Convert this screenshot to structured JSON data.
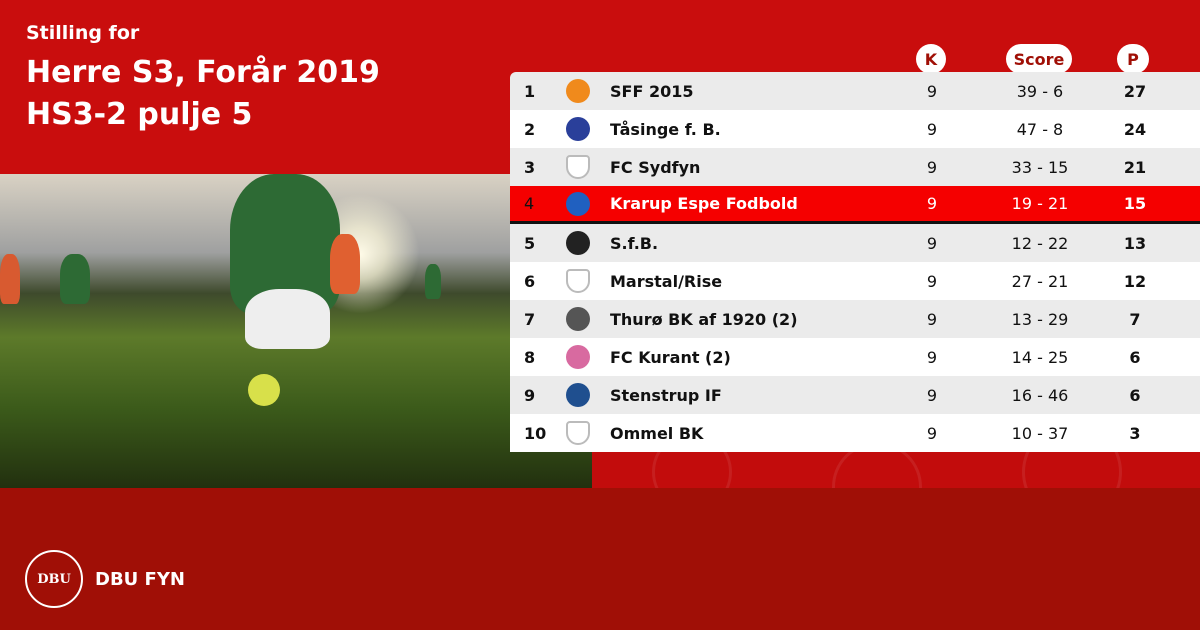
{
  "header": {
    "subtitle": "Stilling for",
    "title_line1": "Herre S3, Forår 2019",
    "title_line2": "HS3-2 pulje 5"
  },
  "columns": {
    "k": "K",
    "score": "Score",
    "p": "P"
  },
  "colors": {
    "primary_red": "#c90d0d",
    "dark_red": "#a00f06",
    "highlight": "#f50000"
  },
  "rows": [
    {
      "pos": "1",
      "name": "SFF 2015",
      "k": "9",
      "score": "39 - 6",
      "p": "27",
      "logo_color": "#f08a1c"
    },
    {
      "pos": "2",
      "name": "Tåsinge  f. B.",
      "k": "9",
      "score": "47 - 8",
      "p": "24",
      "logo_color": "#2a3f9a"
    },
    {
      "pos": "3",
      "name": "FC Sydfyn",
      "k": "9",
      "score": "33 - 15",
      "p": "21",
      "logo_color": "#cccccc"
    },
    {
      "pos": "4",
      "name": "Krarup Espe Fodbold",
      "k": "9",
      "score": "19 - 21",
      "p": "15",
      "logo_color": "#2060c0",
      "highlighted": true
    },
    {
      "pos": "5",
      "name": "S.f.B.",
      "k": "9",
      "score": "12 - 22",
      "p": "13",
      "logo_color": "#222222"
    },
    {
      "pos": "6",
      "name": "Marstal/Rise",
      "k": "9",
      "score": "27 - 21",
      "p": "12",
      "logo_color": "#cccccc"
    },
    {
      "pos": "7",
      "name": "Thurø BK af 1920 (2)",
      "k": "9",
      "score": "13 - 29",
      "p": "7",
      "logo_color": "#555555"
    },
    {
      "pos": "8",
      "name": "FC Kurant (2)",
      "k": "9",
      "score": "14 - 25",
      "p": "6",
      "logo_color": "#d86aa0"
    },
    {
      "pos": "9",
      "name": "Stenstrup IF",
      "k": "9",
      "score": "16 - 46",
      "p": "6",
      "logo_color": "#1f4f8f"
    },
    {
      "pos": "10",
      "name": "Ommel BK",
      "k": "9",
      "score": "10 - 37",
      "p": "3",
      "logo_color": "#cccccc"
    }
  ],
  "footer": {
    "brand": "DBU FYN",
    "seal_text": "DBU"
  }
}
